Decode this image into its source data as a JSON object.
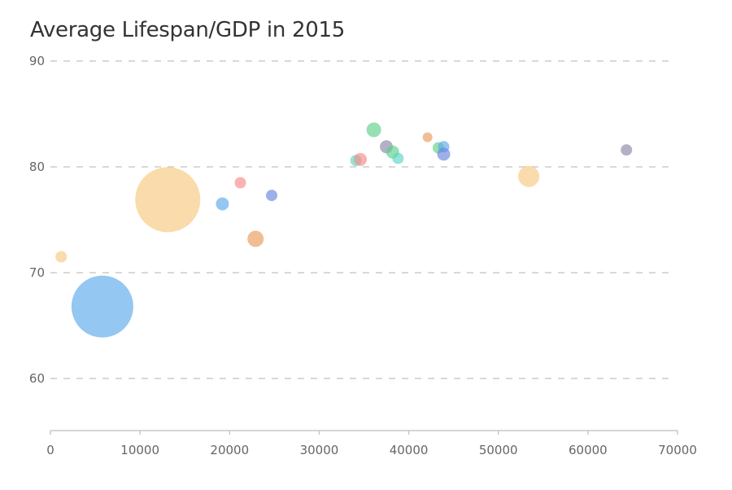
{
  "chart_data": {
    "type": "scatter",
    "subtype": "bubble",
    "title": "Average Lifespan/GDP in 2015",
    "xlabel": "",
    "ylabel": "",
    "xlim": [
      0,
      70000
    ],
    "ylim": [
      55,
      90
    ],
    "x_ticks": [
      0,
      10000,
      20000,
      30000,
      40000,
      50000,
      60000,
      70000
    ],
    "x_tick_labels": [
      "0",
      "10000",
      "20000",
      "30000",
      "40000",
      "50000",
      "60000",
      "70000"
    ],
    "y_ticks": [
      60,
      70,
      80,
      90
    ],
    "y_tick_labels": [
      "60",
      "70",
      "80",
      "90"
    ],
    "grid": "horizontal-dashed",
    "legend": "none",
    "points": [
      {
        "x": 1200,
        "y": 71.5,
        "size": 7,
        "color": "#f7c77e"
      },
      {
        "x": 5800,
        "y": 66.8,
        "size": 38,
        "color": "#5aa9ea"
      },
      {
        "x": 13100,
        "y": 76.9,
        "size": 40,
        "color": "#f7c77e"
      },
      {
        "x": 19200,
        "y": 76.5,
        "size": 8,
        "color": "#5aa9ea"
      },
      {
        "x": 21200,
        "y": 78.5,
        "size": 7,
        "color": "#f88b85"
      },
      {
        "x": 22900,
        "y": 73.2,
        "size": 10,
        "color": "#ea9a5a"
      },
      {
        "x": 24700,
        "y": 77.3,
        "size": 7,
        "color": "#6a86df"
      },
      {
        "x": 34100,
        "y": 80.6,
        "size": 7,
        "color": "#5dd4c4"
      },
      {
        "x": 34600,
        "y": 80.7,
        "size": 8,
        "color": "#f88b85"
      },
      {
        "x": 36100,
        "y": 83.5,
        "size": 9,
        "color": "#5fd08a"
      },
      {
        "x": 37500,
        "y": 81.9,
        "size": 8,
        "color": "#8a87a8"
      },
      {
        "x": 38200,
        "y": 81.4,
        "size": 8,
        "color": "#5fd08a"
      },
      {
        "x": 38800,
        "y": 80.8,
        "size": 7,
        "color": "#5dd4c4"
      },
      {
        "x": 42100,
        "y": 82.8,
        "size": 6,
        "color": "#ea9a5a"
      },
      {
        "x": 43300,
        "y": 81.8,
        "size": 7,
        "color": "#5fd08a"
      },
      {
        "x": 43900,
        "y": 81.9,
        "size": 7,
        "color": "#5aa9ea"
      },
      {
        "x": 43900,
        "y": 81.2,
        "size": 8,
        "color": "#6a86df"
      },
      {
        "x": 53400,
        "y": 79.1,
        "size": 13,
        "color": "#f7c77e"
      },
      {
        "x": 64300,
        "y": 81.6,
        "size": 7,
        "color": "#8a87a8"
      }
    ]
  }
}
